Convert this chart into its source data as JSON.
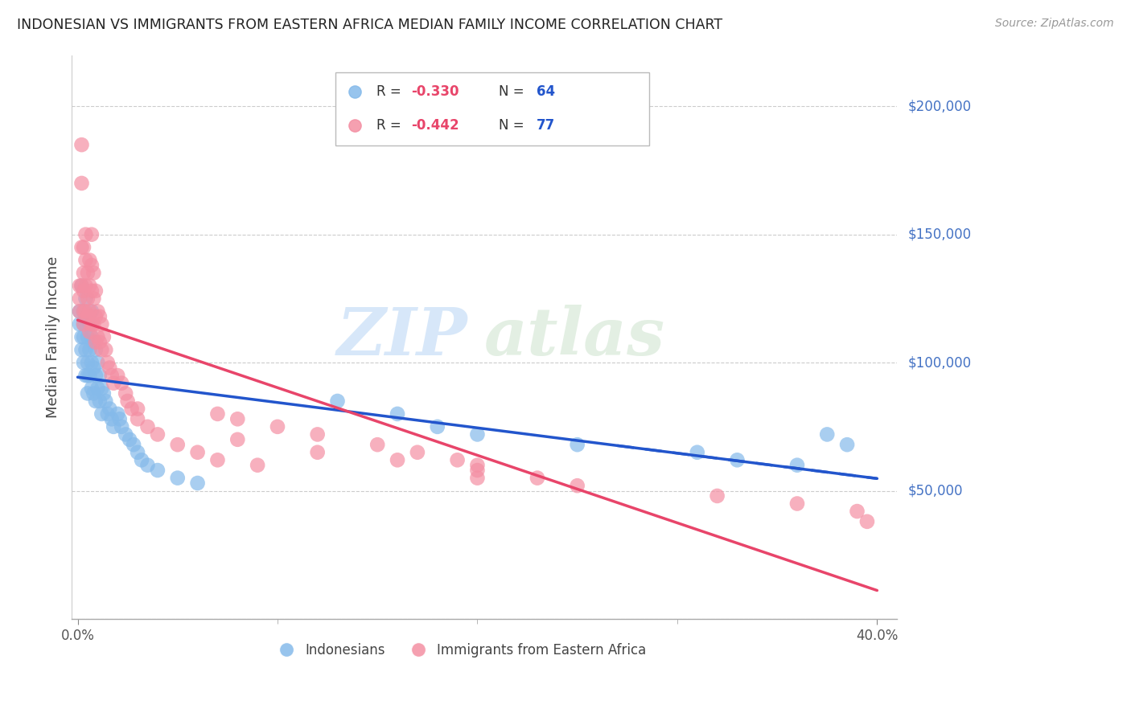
{
  "title": "INDONESIAN VS IMMIGRANTS FROM EASTERN AFRICA MEDIAN FAMILY INCOME CORRELATION CHART",
  "source": "Source: ZipAtlas.com",
  "ylabel": "Median Family Income",
  "xlim": [
    0.0,
    0.4
  ],
  "ylim": [
    0,
    220000
  ],
  "yticks": [
    0,
    50000,
    100000,
    150000,
    200000
  ],
  "right_ytick_labels": [
    "$200,000",
    "$150,000",
    "$100,000",
    "$50,000"
  ],
  "right_ytick_values": [
    200000,
    150000,
    100000,
    50000
  ],
  "indonesian_color": "#85BAEA",
  "eastern_africa_color": "#F48FA3",
  "indonesian_line_color": "#2255CC",
  "eastern_africa_line_color": "#E8456A",
  "indonesian_R": -0.33,
  "indonesian_N": 64,
  "eastern_africa_R": -0.442,
  "eastern_africa_N": 77,
  "watermark_zip": "ZIP",
  "watermark_atlas": "atlas",
  "legend_label_1": "Indonesians",
  "legend_label_2": "Immigrants from Eastern Africa",
  "legend_R_color": "#E8456A",
  "legend_N_color": "#2255CC",
  "indonesian_x": [
    0.001,
    0.001,
    0.002,
    0.002,
    0.002,
    0.003,
    0.003,
    0.003,
    0.003,
    0.004,
    0.004,
    0.004,
    0.004,
    0.005,
    0.005,
    0.005,
    0.005,
    0.006,
    0.006,
    0.006,
    0.007,
    0.007,
    0.007,
    0.007,
    0.008,
    0.008,
    0.008,
    0.009,
    0.009,
    0.009,
    0.01,
    0.01,
    0.011,
    0.011,
    0.012,
    0.012,
    0.013,
    0.014,
    0.015,
    0.016,
    0.017,
    0.018,
    0.02,
    0.021,
    0.022,
    0.024,
    0.026,
    0.028,
    0.03,
    0.032,
    0.035,
    0.04,
    0.05,
    0.06,
    0.13,
    0.16,
    0.18,
    0.2,
    0.25,
    0.31,
    0.33,
    0.36,
    0.375,
    0.385
  ],
  "indonesian_y": [
    120000,
    115000,
    130000,
    110000,
    105000,
    120000,
    115000,
    110000,
    100000,
    125000,
    115000,
    105000,
    95000,
    110000,
    100000,
    95000,
    88000,
    115000,
    105000,
    95000,
    120000,
    110000,
    100000,
    90000,
    108000,
    98000,
    88000,
    105000,
    95000,
    85000,
    100000,
    90000,
    95000,
    85000,
    90000,
    80000,
    88000,
    85000,
    80000,
    82000,
    78000,
    75000,
    80000,
    78000,
    75000,
    72000,
    70000,
    68000,
    65000,
    62000,
    60000,
    58000,
    55000,
    53000,
    85000,
    80000,
    75000,
    72000,
    68000,
    65000,
    62000,
    60000,
    72000,
    68000
  ],
  "eastern_africa_x": [
    0.001,
    0.001,
    0.001,
    0.002,
    0.002,
    0.002,
    0.002,
    0.003,
    0.003,
    0.003,
    0.003,
    0.003,
    0.004,
    0.004,
    0.004,
    0.004,
    0.005,
    0.005,
    0.005,
    0.006,
    0.006,
    0.006,
    0.006,
    0.007,
    0.007,
    0.007,
    0.007,
    0.008,
    0.008,
    0.008,
    0.009,
    0.009,
    0.009,
    0.01,
    0.01,
    0.011,
    0.011,
    0.012,
    0.012,
    0.013,
    0.014,
    0.015,
    0.016,
    0.017,
    0.018,
    0.02,
    0.022,
    0.024,
    0.025,
    0.027,
    0.03,
    0.035,
    0.04,
    0.05,
    0.06,
    0.07,
    0.03,
    0.07,
    0.08,
    0.1,
    0.12,
    0.15,
    0.17,
    0.19,
    0.2,
    0.08,
    0.12,
    0.16,
    0.2,
    0.23,
    0.09,
    0.2,
    0.25,
    0.32,
    0.36,
    0.39,
    0.395
  ],
  "eastern_africa_y": [
    130000,
    125000,
    120000,
    185000,
    170000,
    145000,
    130000,
    145000,
    135000,
    128000,
    120000,
    115000,
    150000,
    140000,
    130000,
    120000,
    135000,
    125000,
    118000,
    140000,
    130000,
    120000,
    112000,
    150000,
    138000,
    128000,
    115000,
    135000,
    125000,
    115000,
    128000,
    118000,
    108000,
    120000,
    110000,
    118000,
    108000,
    115000,
    105000,
    110000,
    105000,
    100000,
    98000,
    95000,
    92000,
    95000,
    92000,
    88000,
    85000,
    82000,
    78000,
    75000,
    72000,
    68000,
    65000,
    62000,
    82000,
    80000,
    78000,
    75000,
    72000,
    68000,
    65000,
    62000,
    60000,
    70000,
    65000,
    62000,
    58000,
    55000,
    60000,
    55000,
    52000,
    48000,
    45000,
    42000,
    38000
  ]
}
